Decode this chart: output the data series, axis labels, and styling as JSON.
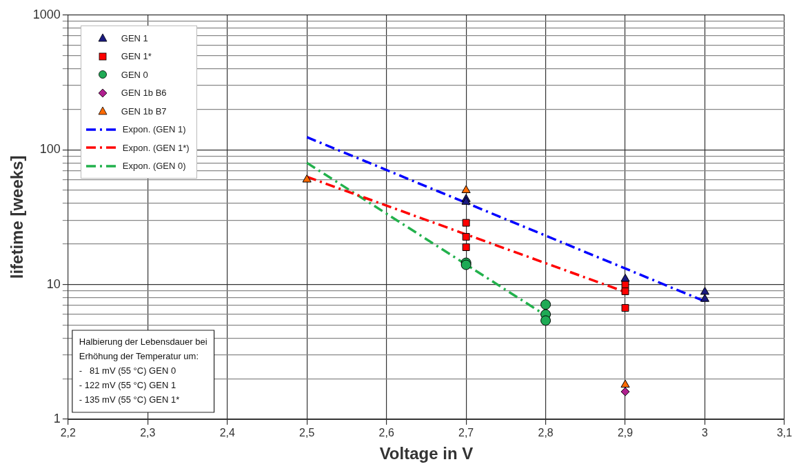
{
  "chart_data": {
    "type": "scatter",
    "xlabel": "Voltage in V",
    "ylabel": "lifetime [weeks]",
    "log": "y",
    "grid": true,
    "legend": "top left",
    "xlim": [
      2.2,
      3.1
    ],
    "xticks": [
      {
        "value": 2.2,
        "label": "2,2"
      },
      {
        "value": 2.3,
        "label": "2,3"
      },
      {
        "value": 2.4,
        "label": "2,4"
      },
      {
        "value": 2.5,
        "label": "2,5"
      },
      {
        "value": 2.6,
        "label": "2,6"
      },
      {
        "value": 2.7,
        "label": "2,7"
      },
      {
        "value": 2.8,
        "label": "2,8"
      },
      {
        "value": 2.9,
        "label": "2,9"
      },
      {
        "value": 3,
        "label": "3"
      },
      {
        "value": 3.1,
        "label": "3,1"
      }
    ],
    "ylim": [
      1,
      1000
    ],
    "yticks": [
      1,
      {
        "value": 2,
        "label": null
      },
      {
        "value": 3,
        "label": null
      },
      {
        "value": 4,
        "label": null
      },
      {
        "value": 5,
        "label": null
      },
      {
        "value": 6,
        "label": null
      },
      {
        "value": 7,
        "label": null
      },
      {
        "value": 8,
        "label": null
      },
      {
        "value": 9,
        "label": null
      },
      10,
      {
        "value": 20,
        "label": null
      },
      {
        "value": 30,
        "label": null
      },
      {
        "value": 40,
        "label": null
      },
      {
        "value": 50,
        "label": null
      },
      {
        "value": 60,
        "label": null
      },
      {
        "value": 70,
        "label": null
      },
      {
        "value": 80,
        "label": null
      },
      {
        "value": 90,
        "label": null
      },
      100,
      {
        "value": 200,
        "label": null
      },
      {
        "value": 300,
        "label": null
      },
      {
        "value": 400,
        "label": null
      },
      {
        "value": 500,
        "label": null
      },
      {
        "value": 600,
        "label": null
      },
      {
        "value": 700,
        "label": null
      },
      {
        "value": 800,
        "label": null
      },
      {
        "value": 900,
        "label": null
      },
      1000
    ],
    "series": [
      {
        "name": "GEN 1",
        "marker": "triangle",
        "color": "#1a1a80",
        "x": [
          2.7,
          2.7,
          2.9,
          3,
          3
        ],
        "values": [
          43,
          41,
          11,
          8.8,
          7.8
        ]
      },
      {
        "name": "GEN 1*",
        "marker": "square",
        "color": "#ff0000",
        "x": [
          2.7,
          2.7,
          2.7,
          2.9,
          2.9,
          2.9
        ],
        "values": [
          28.7,
          22.6,
          18.9,
          10,
          8.9,
          6.7
        ]
      },
      {
        "name": "GEN 0",
        "marker": "circle",
        "color": "#1faa55",
        "x": [
          2.7,
          2.7,
          2.8,
          2.8,
          2.8
        ],
        "values": [
          14.5,
          14,
          7.1,
          6,
          5.4
        ]
      },
      {
        "name": "GEN 1b B6",
        "marker": "diamond",
        "color": "#b0208f",
        "x": [
          2.9
        ],
        "values": [
          1.6
        ]
      },
      {
        "name": "GEN 1b B7",
        "marker": "triangle",
        "color": "#ff6a00",
        "x": [
          2.5,
          2.7,
          2.9
        ],
        "values": [
          60,
          50,
          1.8
        ]
      },
      {
        "name": "Expon. (GEN 1)",
        "type": "line",
        "line_style": "dashed",
        "color": "#0000ff",
        "x": [
          2.5,
          3
        ],
        "values": [
          124,
          7.5
        ]
      },
      {
        "name": "Expon. (GEN 1*)",
        "type": "line",
        "line_style": "dashed",
        "color": "#ff0000",
        "x": [
          2.5,
          2.9
        ],
        "values": [
          63,
          8.8
        ]
      },
      {
        "name": "Expon. (GEN 0)",
        "type": "line",
        "line_style": "dashed",
        "color": "#22b14c",
        "x": [
          2.5,
          2.8
        ],
        "values": [
          80,
          5.9
        ]
      }
    ],
    "annotations": [
      "Halbierung der Lebensdauer bei\nErhöhung der Temperatur um:\n-   81 mV (55 °C) GEN 0\n- 122 mV (55 °C) GEN 1\n- 135 mV (55 °C) GEN 1*"
    ]
  }
}
